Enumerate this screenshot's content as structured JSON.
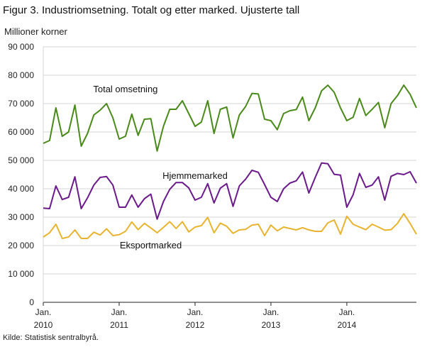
{
  "title": "Figur 3. Industriomsetning. Totalt og etter marked. Ujusterte tall",
  "y_unit": "Millioner  korner",
  "source": "Kilde: Statistisk sentralbyrå.",
  "chart_data": {
    "type": "line",
    "ylim": [
      0,
      90000
    ],
    "yticks": [
      0,
      10000,
      20000,
      30000,
      40000,
      50000,
      60000,
      70000,
      80000,
      90000
    ],
    "ytick_labels": [
      "0",
      "10 000",
      "20 000",
      "30 000",
      "40 000",
      "50 000",
      "60 000",
      "70 000",
      "80 000",
      "90 000"
    ],
    "x_ticks": [
      {
        "index": 0,
        "label_top": "Jan.",
        "label_bottom": "2010"
      },
      {
        "index": 12,
        "label_top": "Jan.",
        "label_bottom": "2011"
      },
      {
        "index": 24,
        "label_top": "Jan.",
        "label_bottom": "2012"
      },
      {
        "index": 36,
        "label_top": "Jan.",
        "label_bottom": "2013"
      },
      {
        "index": 48,
        "label_top": "Jan.",
        "label_bottom": "2014"
      }
    ],
    "n_points": 60,
    "grid": true,
    "series": [
      {
        "name": "Total omsetning",
        "color": "#4a8a1a",
        "label_index": 13,
        "label_value": 74000,
        "values": [
          56000,
          57000,
          68500,
          58500,
          60000,
          69500,
          55000,
          59500,
          66000,
          67700,
          70000,
          65000,
          57500,
          58500,
          66300,
          58800,
          64500,
          64700,
          53300,
          62000,
          68000,
          68000,
          71000,
          66500,
          62000,
          63500,
          71000,
          59500,
          68000,
          68800,
          57900,
          66000,
          69000,
          73600,
          73400,
          64500,
          64000,
          60800,
          66500,
          67500,
          67900,
          72300,
          64000,
          68500,
          74500,
          76500,
          74000,
          68500,
          64000,
          65200,
          71800,
          65800,
          68000,
          70400,
          61500,
          70000,
          72800,
          76500,
          73300,
          68500
        ]
      },
      {
        "name": "Hjemmemarked",
        "color": "#6a1a8a",
        "label_index": 24,
        "label_value": 43500,
        "values": [
          33200,
          33000,
          41000,
          36200,
          37000,
          44200,
          33000,
          36800,
          41300,
          44000,
          44300,
          41300,
          33500,
          33500,
          37800,
          33500,
          36500,
          38100,
          29300,
          35500,
          39800,
          42200,
          42200,
          40300,
          36000,
          37000,
          41800,
          35000,
          40200,
          41800,
          33800,
          41000,
          43400,
          46500,
          45800,
          41500,
          37000,
          35500,
          40000,
          42000,
          42800,
          45900,
          38500,
          44000,
          49100,
          48800,
          45100,
          44800,
          33500,
          37900,
          45400,
          40500,
          41300,
          44200,
          36000,
          44400,
          45400,
          45000,
          46000,
          42000
        ]
      },
      {
        "name": "Eksportmarked",
        "color": "#e8b430",
        "label_index": 17,
        "label_value": 19000,
        "values": [
          23000,
          24500,
          27500,
          22500,
          23000,
          25500,
          22500,
          22500,
          24700,
          23700,
          25900,
          23500,
          23800,
          25000,
          28300,
          25600,
          27800,
          26200,
          24500,
          26400,
          28400,
          26000,
          28400,
          24800,
          26500,
          27000,
          29900,
          24500,
          27900,
          26800,
          24300,
          25500,
          25700,
          27200,
          27500,
          23500,
          27200,
          25200,
          26500,
          26000,
          25500,
          26300,
          25500,
          25000,
          25000,
          28000,
          29000,
          24000,
          30300,
          27500,
          26500,
          25600,
          27500,
          26500,
          25400,
          25600,
          27800,
          31200,
          27800,
          24000
        ]
      }
    ]
  }
}
